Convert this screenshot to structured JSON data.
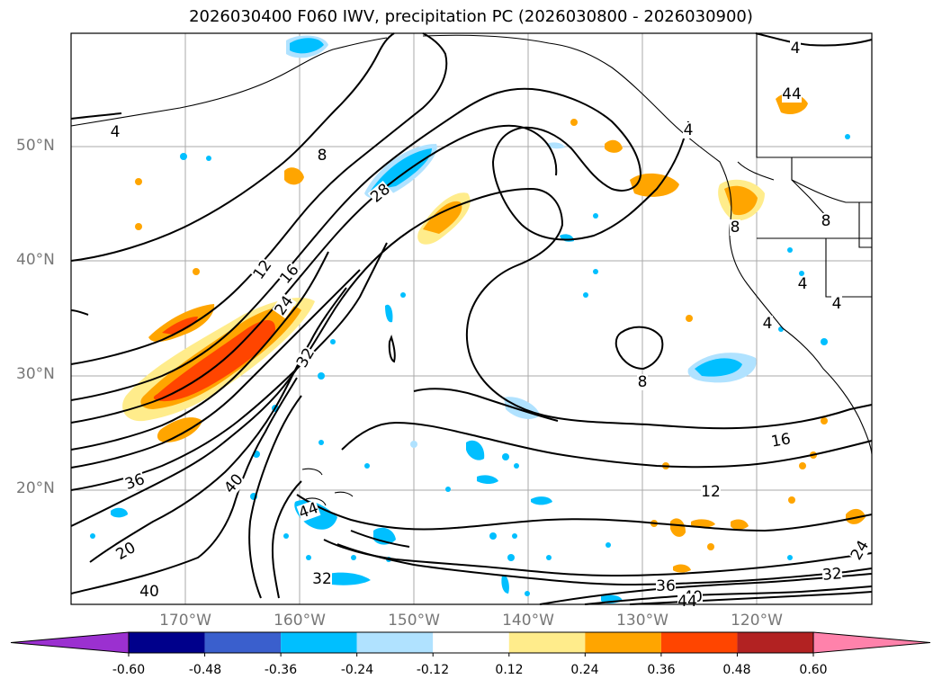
{
  "title": "2026030400 F060 IWV, precipitation PC (2026030800 - 2026030900)",
  "map": {
    "projection": "cylindrical",
    "region": "North Pacific Ocean / Western North America",
    "lon_range": [
      "180°",
      "110°W"
    ],
    "lat_range": [
      "10°N",
      "60°N"
    ],
    "lat_labels": [
      "50°N",
      "40°N",
      "30°N",
      "20°N"
    ],
    "lon_labels": [
      "170°W",
      "160°W",
      "150°W",
      "140°W",
      "130°W",
      "120°W"
    ],
    "grid": true,
    "contour_field": "IWV",
    "contour_labels": [
      "4",
      "4",
      "8",
      "12",
      "16",
      "24",
      "28",
      "32",
      "36",
      "40",
      "44",
      "4",
      "8",
      "8",
      "4",
      "4",
      "4",
      "8",
      "16",
      "12",
      "20",
      "40",
      "44",
      "32",
      "32",
      "36",
      "24",
      "40",
      "44"
    ],
    "shading_field": "precipitation PC"
  },
  "colorbar": {
    "tick_labels": [
      "-0.60",
      "-0.48",
      "-0.36",
      "-0.24",
      "-0.12",
      "0.12",
      "0.24",
      "0.36",
      "0.48",
      "0.60"
    ],
    "colors": [
      "#9b30d0",
      "#00008b",
      "#3a5fcd",
      "#00bfff",
      "#b0e2ff",
      "#ffffff",
      "#ffec8b",
      "#ffa500",
      "#ff4500",
      "#b22222",
      "#ff82ab"
    ],
    "extend": "both"
  }
}
